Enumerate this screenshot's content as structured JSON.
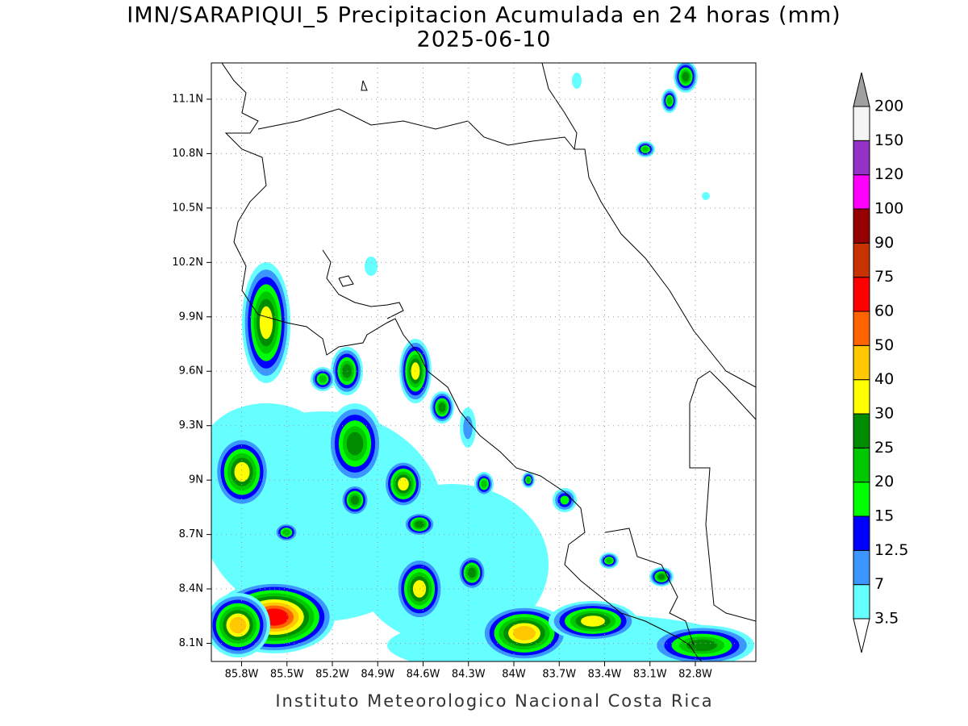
{
  "chart_data": {
    "type": "contour_map",
    "title": "IMN/SARAPIQUI_5 Precipitacion Acumulada en 24 horas (mm)",
    "subtitle": "2025-06-10",
    "footer": "Instituto Meteorologico Nacional Costa Rica",
    "xlim": [
      -86.0,
      -82.4
    ],
    "ylim": [
      8.0,
      11.3
    ],
    "xticks": [
      {
        "value": -85.8,
        "label": "85.8W"
      },
      {
        "value": -85.5,
        "label": "85.5W"
      },
      {
        "value": -85.2,
        "label": "85.2W"
      },
      {
        "value": -84.9,
        "label": "84.9W"
      },
      {
        "value": -84.6,
        "label": "84.6W"
      },
      {
        "value": -84.3,
        "label": "84.3W"
      },
      {
        "value": -84.0,
        "label": "84W"
      },
      {
        "value": -83.7,
        "label": "83.7W"
      },
      {
        "value": -83.4,
        "label": "83.4W"
      },
      {
        "value": -83.1,
        "label": "83.1W"
      },
      {
        "value": -82.8,
        "label": "82.8W"
      }
    ],
    "yticks": [
      {
        "value": 8.1,
        "label": "8.1N"
      },
      {
        "value": 8.4,
        "label": "8.4N"
      },
      {
        "value": 8.7,
        "label": "8.7N"
      },
      {
        "value": 9.0,
        "label": "9N"
      },
      {
        "value": 9.3,
        "label": "9.3N"
      },
      {
        "value": 9.6,
        "label": "9.6N"
      },
      {
        "value": 9.9,
        "label": "9.9N"
      },
      {
        "value": 10.2,
        "label": "10.2N"
      },
      {
        "value": 10.5,
        "label": "10.5N"
      },
      {
        "value": 10.8,
        "label": "10.8N"
      },
      {
        "value": 11.1,
        "label": "11.1N"
      }
    ],
    "grid": true,
    "colorbar": {
      "levels": [
        3.5,
        7,
        12.5,
        15,
        20,
        25,
        30,
        40,
        50,
        60,
        75,
        90,
        100,
        120,
        150,
        200
      ],
      "colors": [
        "#66ffff",
        "#3c96ff",
        "#0000ff",
        "#00ff00",
        "#00c800",
        "#008c00",
        "#ffff00",
        "#ffc800",
        "#ff6400",
        "#ff0000",
        "#c83200",
        "#960000",
        "#ff00ff",
        "#9632c8",
        "#f4f4f4"
      ],
      "under_color": "#ffffff",
      "over_color": "#a0a0a0"
    }
  }
}
